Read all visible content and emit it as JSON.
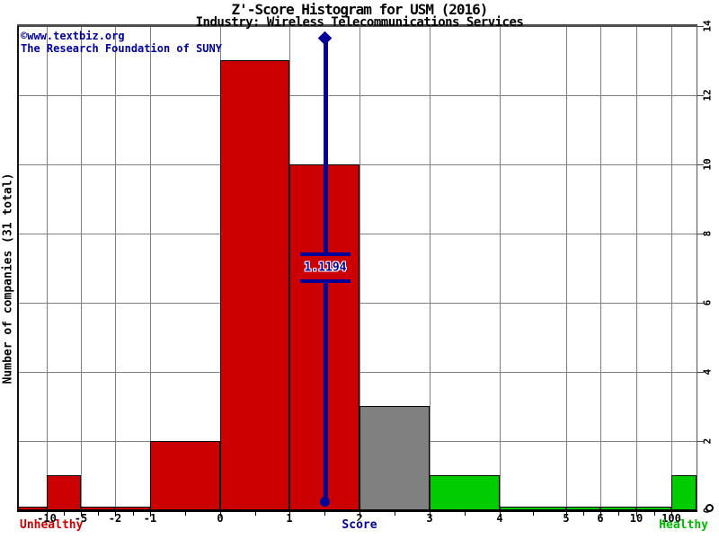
{
  "header": {
    "credit_line1": "©www.textbiz.org",
    "credit_line2": "The Research Foundation of SUNY"
  },
  "chart_data": {
    "type": "bar",
    "title": "Z'-Score Histogram for USM (2016)",
    "subtitle": "Industry: Wireless Telecommunications Services",
    "xlabel": "Score",
    "ylabel": "Number of companies (31 total)",
    "total_companies": 31,
    "ylim": [
      0,
      14
    ],
    "grid": true,
    "y_ticks": [
      0,
      2,
      4,
      6,
      8,
      10,
      12,
      14
    ],
    "x_tick_labels": [
      "-10",
      "-5",
      "-2",
      "-1",
      "0",
      "1",
      "2",
      "3",
      "4",
      "5",
      "6",
      "10",
      "100"
    ],
    "left_caption": "Unhealthy",
    "right_caption": "Healthy",
    "bins": [
      {
        "from": "left",
        "to": "-10",
        "count": 0,
        "status": "unhealthy"
      },
      {
        "from": "-10",
        "to": "-5",
        "count": 1,
        "status": "unhealthy"
      },
      {
        "from": "-5",
        "to": "-2",
        "count": 0,
        "status": "unhealthy"
      },
      {
        "from": "-2",
        "to": "-1",
        "count": 0,
        "status": "unhealthy"
      },
      {
        "from": "-1",
        "to": "0",
        "count": 2,
        "status": "unhealthy"
      },
      {
        "from": "0",
        "to": "1",
        "count": 13,
        "status": "unhealthy"
      },
      {
        "from": "1",
        "to": "2",
        "count": 10,
        "status": "unhealthy"
      },
      {
        "from": "2",
        "to": "3",
        "count": 3,
        "status": "middle"
      },
      {
        "from": "3",
        "to": "4",
        "count": 1,
        "status": "healthy"
      },
      {
        "from": "4",
        "to": "5",
        "count": 0,
        "status": "healthy"
      },
      {
        "from": "5",
        "to": "6",
        "count": 0,
        "status": "healthy"
      },
      {
        "from": "6",
        "to": "10",
        "count": 0,
        "status": "healthy"
      },
      {
        "from": "10",
        "to": "100",
        "count": 0,
        "status": "healthy"
      },
      {
        "from": "100",
        "to": "end",
        "count": 1,
        "status": "healthy"
      }
    ],
    "marker": {
      "label": "1.1194",
      "value": 1.1194,
      "plotted_at_bin": "1-2"
    },
    "colors": {
      "unhealthy": "#cc0000",
      "middle": "#808080",
      "healthy": "#00cc00",
      "marker_blue": "#000099",
      "grid": "#808080"
    }
  }
}
